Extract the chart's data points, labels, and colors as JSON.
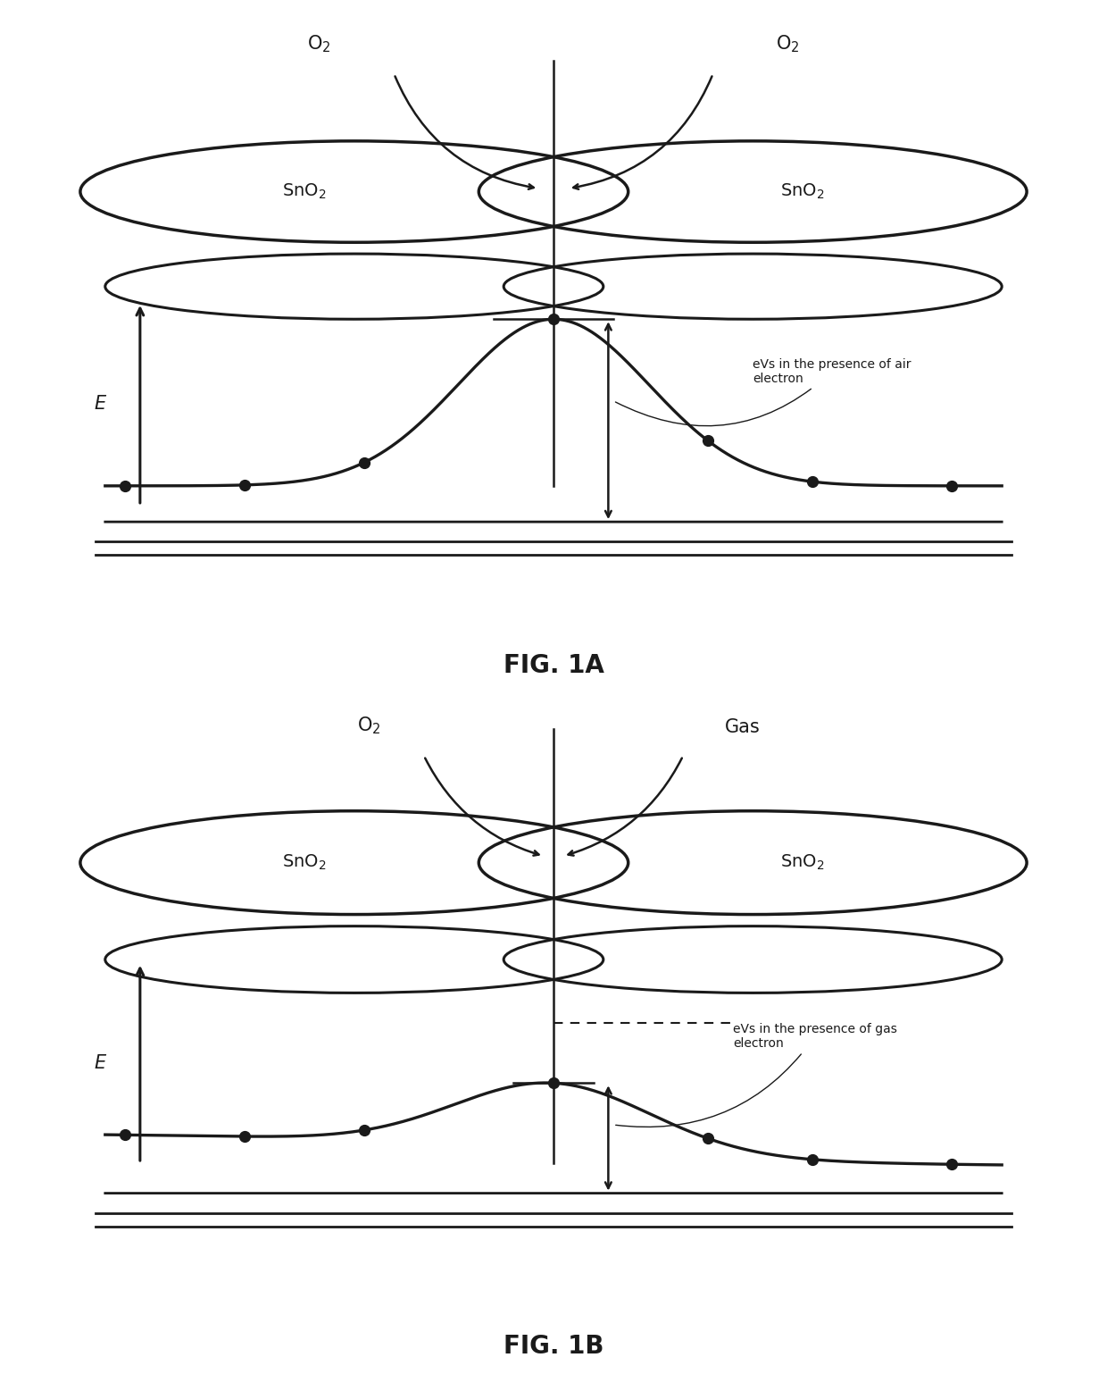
{
  "fig_width": 12.4,
  "fig_height": 15.57,
  "dpi": 100,
  "bg_color": "#ffffff",
  "line_color": "#1a1a1a",
  "panel_A": {
    "title": "FIG. 1A",
    "label_O2_left": "O₂",
    "label_O2_right": "O₂",
    "label_SnO2_left": "SnO₂",
    "label_SnO2_right": "SnO₂",
    "annotation_line1": "eVs in the presence of air",
    "annotation_line2": "electron",
    "E_label": "E"
  },
  "panel_B": {
    "title": "FIG. 1B",
    "label_O2_left": "O₂",
    "label_Gas_right": "Gas",
    "label_SnO2_left": "SnO₂",
    "label_SnO2_right": "SnO₂",
    "annotation_line1": "eVs in the presence of gas",
    "annotation_line2": "electron",
    "E_label": "E"
  }
}
